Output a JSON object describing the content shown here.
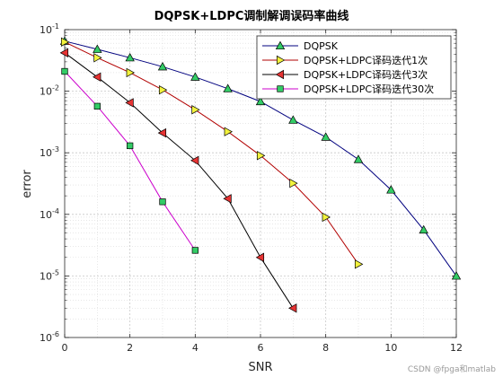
{
  "chart_data": {
    "type": "line",
    "title": "DQPSK+LDPC调制解调误码率曲线",
    "xlabel": "SNR",
    "ylabel": "error",
    "xlim": [
      0,
      12
    ],
    "ylim": [
      1e-06,
      0.1
    ],
    "yscale": "log",
    "grid": true,
    "legend_position": "top-right",
    "x_ticks": [
      0,
      2,
      4,
      6,
      8,
      10,
      12
    ],
    "y_tick_exponents": [
      -6,
      -5,
      -4,
      -3,
      -2,
      -1
    ],
    "series": [
      {
        "name": "DQPSK",
        "color": "#00007f",
        "marker": "triangle-up",
        "marker_color": "#33cc66",
        "x": [
          0,
          1,
          2,
          3,
          4,
          5,
          6,
          7,
          8,
          9,
          10,
          11,
          12
        ],
        "y": [
          0.065,
          0.048,
          0.035,
          0.025,
          0.017,
          0.011,
          0.0068,
          0.0034,
          0.0018,
          0.00078,
          0.00025,
          5.6e-05,
          1e-05
        ]
      },
      {
        "name": "DQPSK+LDPC译码迭代1次",
        "color": "#b20000",
        "marker": "triangle-right",
        "marker_color": "#f2f23c",
        "x": [
          0,
          1,
          2,
          3,
          4,
          5,
          6,
          7,
          8,
          9
        ],
        "y": [
          0.063,
          0.035,
          0.02,
          0.0105,
          0.005,
          0.0022,
          0.0009,
          0.00032,
          9e-05,
          1.55e-05
        ]
      },
      {
        "name": "DQPSK+LDPC译码迭代3次",
        "color": "#000000",
        "marker": "triangle-left",
        "marker_color": "#e63333",
        "x": [
          0,
          1,
          2,
          3,
          4,
          5,
          6,
          7
        ],
        "y": [
          0.042,
          0.017,
          0.0065,
          0.0021,
          0.00075,
          0.00018,
          2e-05,
          3e-06
        ]
      },
      {
        "name": "DQPSK+LDPC译码迭代30次",
        "color": "#cc00cc",
        "marker": "square",
        "marker_color": "#33cc66",
        "x": [
          0,
          1,
          2,
          3,
          4
        ],
        "y": [
          0.021,
          0.0057,
          0.0013,
          0.00016,
          2.6e-05
        ]
      }
    ]
  },
  "watermark": "CSDN @fpga和matlab"
}
